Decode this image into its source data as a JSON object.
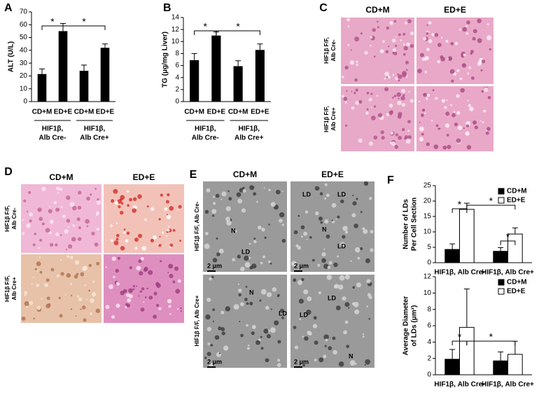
{
  "chart_data": [
    {
      "type": "bar",
      "panel": "A",
      "ylabel": [
        "ALT (U/L)"
      ],
      "categories": [
        "CD+M",
        "ED+E",
        "CD+M",
        "ED+E"
      ],
      "groups": [
        [
          "HIF1β,",
          "Alb Cre-"
        ],
        [
          "HIF1β,",
          "Alb Cre+"
        ]
      ],
      "values": [
        21.5,
        55,
        24,
        42
      ],
      "errors": [
        4,
        6,
        4.5,
        3
      ],
      "color": "#000000",
      "ylim": [
        0,
        70
      ],
      "yticks": [
        0,
        10,
        20,
        30,
        40,
        50,
        60,
        70
      ],
      "annotations": [
        "*",
        "*"
      ]
    },
    {
      "type": "bar",
      "panel": "B",
      "ylabel": [
        "TG (μg/mg Liver)"
      ],
      "categories": [
        "CD+M",
        "ED+E",
        "CD+M",
        "ED+E"
      ],
      "groups": [
        [
          "HIF1β,",
          "Alb Cre-"
        ],
        [
          "HIF1β,",
          "Alb Cre+"
        ]
      ],
      "values": [
        6.9,
        11,
        5.9,
        8.6
      ],
      "errors": [
        1.1,
        0.6,
        0.9,
        1.0
      ],
      "color": "#000000",
      "ylim": [
        0,
        14
      ],
      "yticks": [
        0,
        2,
        4,
        6,
        8,
        10,
        12,
        14
      ],
      "annotations": [
        "*",
        "*"
      ]
    },
    {
      "type": "grouped-bar",
      "panel": "F",
      "ylabel": [
        "Number of LDs",
        "Per Cell Section"
      ],
      "categories": [
        "HIF1β, Alb Cre-",
        "HIF1β, Alb Cre+"
      ],
      "series": [
        {
          "name": "CD+M",
          "color": "#000000",
          "values": [
            4.3,
            3.7
          ],
          "errors": [
            1.8,
            1.2
          ]
        },
        {
          "name": "ED+E",
          "color": "#ffffff",
          "values": [
            17.3,
            9.3
          ],
          "errors": [
            2,
            2
          ]
        }
      ],
      "ylim": [
        0,
        25
      ],
      "yticks": [
        0,
        5,
        10,
        15,
        20,
        25
      ],
      "annotations": [
        "*",
        "*",
        "*"
      ]
    },
    {
      "type": "grouped-bar",
      "ylabel": [
        "Average Diameter",
        "of LDs (μm²)"
      ],
      "categories": [
        "HIF1β, Alb Cre-",
        "HIF1β, Alb Cre+"
      ],
      "series": [
        {
          "name": "CD+M",
          "color": "#000000",
          "values": [
            1.9,
            1.7
          ],
          "errors": [
            1.2,
            1.1
          ]
        },
        {
          "name": "ED+E",
          "color": "#ffffff",
          "values": [
            5.8,
            2.5
          ],
          "errors": [
            4.7,
            1.6
          ]
        }
      ],
      "ylim": [
        0,
        12
      ],
      "yticks": [
        0,
        2,
        4,
        6,
        8,
        10,
        12
      ],
      "annotations": [
        "*",
        "*"
      ]
    }
  ],
  "panels": {
    "C": {
      "letter": "C",
      "columns": [
        "CD+M",
        "ED+E"
      ],
      "rows": [
        [
          "HIF1β F/F,",
          "Alb Cre-"
        ],
        [
          "HIF1β F/F,",
          "Alb Cre+"
        ]
      ]
    },
    "D": {
      "letter": "D",
      "columns": [
        "CD+M",
        "ED+E"
      ],
      "rows": [
        [
          "HIF1β F/F,",
          "Alb Cre-"
        ],
        [
          "HIF1β F/F,",
          "Alb Cre+"
        ]
      ]
    },
    "E": {
      "letter": "E",
      "columns": [
        "CD+M",
        "ED+E"
      ],
      "rows": [
        "HIF1β F/F, Alb Cre-",
        "HIF1β F/F, Alb Cre+"
      ],
      "images": [
        [
          "N",
          "LD",
          "2 μm"
        ],
        [
          "LD",
          "LD",
          "N",
          "LD",
          "2 μm"
        ],
        [
          "N",
          "LD",
          "2 μm"
        ],
        [
          "LD",
          "LD",
          "N",
          "2 μm"
        ]
      ]
    }
  }
}
